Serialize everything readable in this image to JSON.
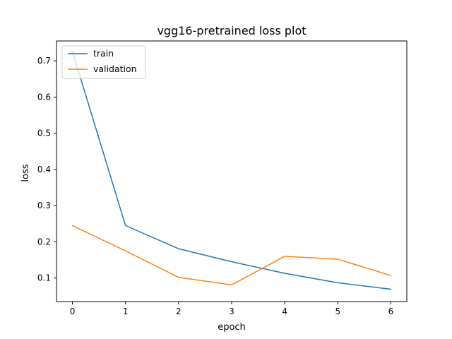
{
  "chart_data": {
    "type": "line",
    "title": "vgg16-pretrained loss plot",
    "xlabel": "epoch",
    "ylabel": "loss",
    "x": [
      0,
      1,
      2,
      3,
      4,
      5,
      6
    ],
    "series": [
      {
        "name": "train",
        "color": "#1f77b4",
        "values": [
          0.726,
          0.245,
          0.181,
          0.145,
          0.113,
          0.087,
          0.069
        ]
      },
      {
        "name": "validation",
        "color": "#ff7f0e",
        "values": [
          0.245,
          0.175,
          0.102,
          0.081,
          0.16,
          0.152,
          0.107
        ]
      }
    ],
    "xlim": [
      -0.3,
      6.3
    ],
    "ylim": [
      0.035,
      0.755
    ],
    "xticks": [
      0,
      1,
      2,
      3,
      4,
      5,
      6
    ],
    "yticks": [
      0.1,
      0.2,
      0.3,
      0.4,
      0.5,
      0.6,
      0.7
    ],
    "grid": false,
    "legend_position": "top-left"
  }
}
